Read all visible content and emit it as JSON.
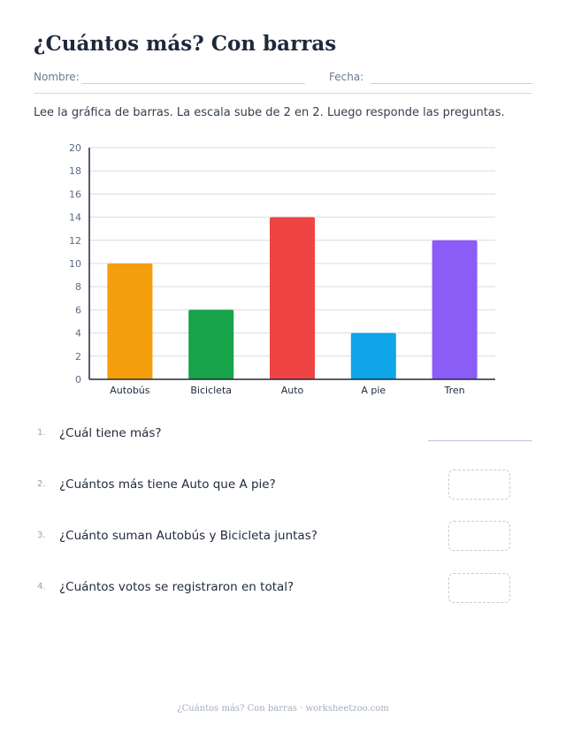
{
  "header": {
    "title": "¿Cuántos más? Con barras",
    "name_label": "Nombre:",
    "date_label": "Fecha:"
  },
  "instructions": "Lee la gráfica de barras. La escala sube de 2 en 2. Luego responde las preguntas.",
  "chart_data": {
    "type": "bar",
    "categories": [
      "Autobús",
      "Bicicleta",
      "Auto",
      "A pie",
      "Tren"
    ],
    "values": [
      10,
      6,
      14,
      4,
      12
    ],
    "colors": [
      "#f59e0b",
      "#16a34a",
      "#ef4444",
      "#0ea5e9",
      "#8b5cf6"
    ],
    "ylim": [
      0,
      20
    ],
    "yticks": [
      0,
      2,
      4,
      6,
      8,
      10,
      12,
      14,
      16,
      18,
      20
    ],
    "grid": true,
    "title": "",
    "xlabel": "",
    "ylabel": ""
  },
  "questions": [
    {
      "number": "1.",
      "text": "¿Cuál tiene más?",
      "answer_type": "line"
    },
    {
      "number": "2.",
      "text": "¿Cuántos más tiene Auto que A pie?",
      "answer_type": "box"
    },
    {
      "number": "3.",
      "text": "¿Cuánto suman Autobús y Bicicleta juntas?",
      "answer_type": "box"
    },
    {
      "number": "4.",
      "text": "¿Cuántos votos se registraron en total?",
      "answer_type": "box"
    }
  ],
  "footer": "¿Cuántos más? Con barras · worksheetzoo.com"
}
